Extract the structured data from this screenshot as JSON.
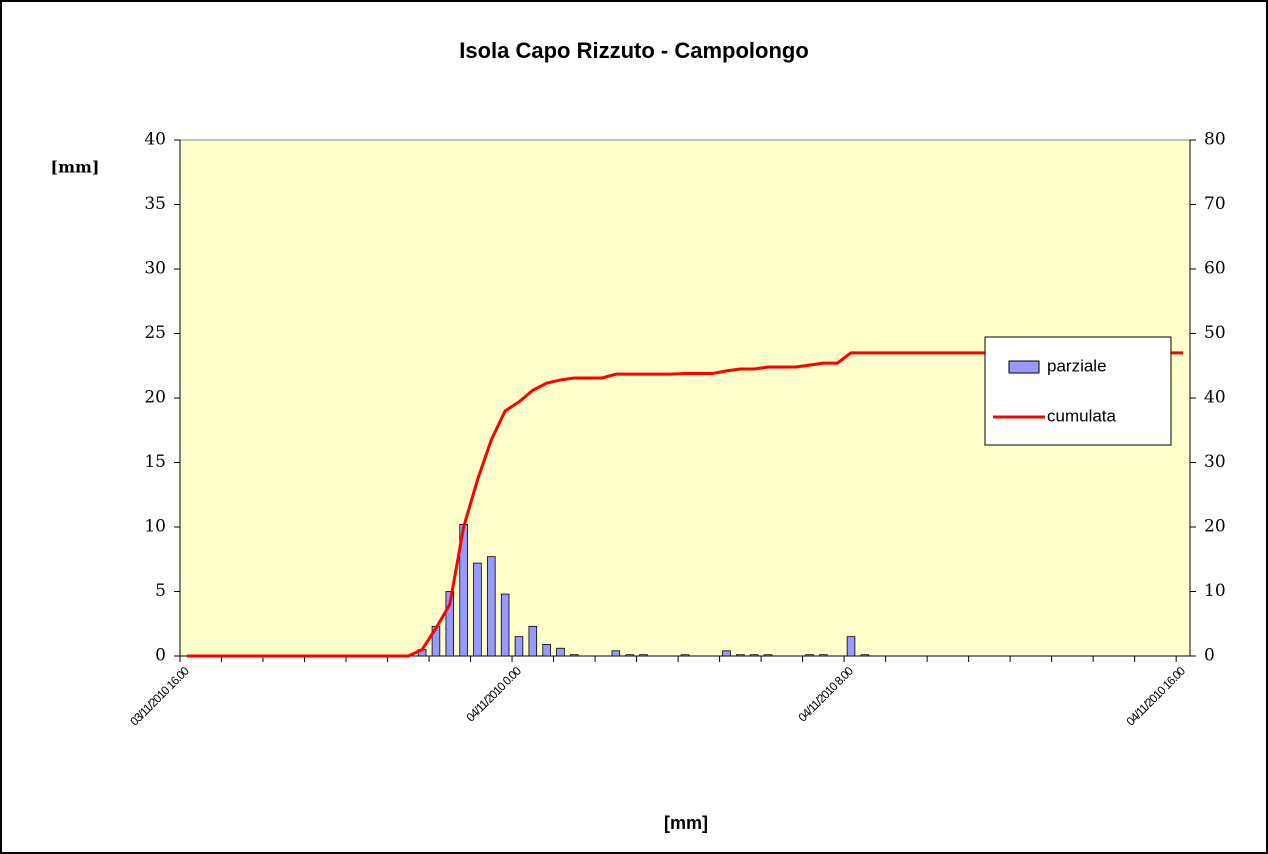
{
  "chart_data": {
    "type": "bar",
    "title": "Isola Capo Rizzuto - Campolongo",
    "y_label": "[mm]",
    "x_label": "[mm]",
    "categories": [
      "03/11/2010 16.00",
      null,
      null,
      null,
      null,
      null,
      null,
      null,
      null,
      null,
      null,
      null,
      null,
      null,
      null,
      null,
      null,
      null,
      null,
      null,
      null,
      null,
      null,
      null,
      "04/11/2010 0.00",
      null,
      null,
      null,
      null,
      null,
      null,
      null,
      null,
      null,
      null,
      null,
      null,
      null,
      null,
      null,
      null,
      null,
      null,
      null,
      null,
      null,
      null,
      null,
      "04/11/2010 8.00",
      null,
      null,
      null,
      null,
      null,
      null,
      null,
      null,
      null,
      null,
      null,
      null,
      null,
      null,
      null,
      null,
      null,
      null,
      null,
      null,
      null,
      null,
      null,
      "04/11/2010 16.00"
    ],
    "series": [
      {
        "name": "parziale",
        "type": "bar",
        "color": "#9999ff",
        "axis": "y",
        "values": [
          0,
          0,
          0,
          0,
          0,
          0,
          0,
          0,
          0,
          0,
          0,
          0,
          0,
          0,
          0,
          0,
          0,
          0.5,
          2.3,
          5,
          10.2,
          7.2,
          7.7,
          4.8,
          1.5,
          2.3,
          0.9,
          0.6,
          0.1,
          0,
          0,
          0.4,
          0.1,
          0.1,
          0,
          0,
          0.1,
          0,
          0,
          0.4,
          0.1,
          0.1,
          0.1,
          0,
          0,
          0.1,
          0.1,
          0,
          1.5,
          0.1,
          0,
          0,
          0,
          0,
          0,
          0,
          0,
          0,
          0,
          0,
          0,
          0,
          0,
          0,
          0,
          0,
          0,
          0,
          0,
          0,
          0,
          0,
          0
        ]
      },
      {
        "name": "cumulata",
        "type": "line",
        "color": "#ff0000",
        "axis": "y2",
        "values": [
          0,
          0,
          0,
          0,
          0,
          0,
          0,
          0,
          0,
          0,
          0,
          0,
          0,
          0,
          0,
          0,
          0,
          1,
          4.3,
          8,
          20,
          27.3,
          33.5,
          38,
          39.4,
          41.2,
          42.3,
          42.8,
          43.1,
          43.1,
          43.1,
          43.7,
          43.7,
          43.7,
          43.7,
          43.7,
          43.8,
          43.8,
          43.8,
          44.2,
          44.5,
          44.5,
          44.8,
          44.8,
          44.8,
          45.1,
          45.4,
          45.4,
          47,
          47,
          47,
          47,
          47,
          47,
          47,
          47,
          47,
          47,
          47,
          47,
          47,
          47,
          47,
          47,
          47,
          47,
          47,
          47,
          47,
          47,
          47,
          47,
          47
        ]
      }
    ],
    "ylim": [
      0,
      40
    ],
    "yticks": [
      0,
      5,
      10,
      15,
      20,
      25,
      30,
      35,
      40
    ],
    "y2lim": [
      0,
      80
    ],
    "y2ticks": [
      0,
      10,
      20,
      30,
      40,
      50,
      60,
      70,
      80
    ],
    "background": "#ffffcc",
    "legend": "right"
  }
}
